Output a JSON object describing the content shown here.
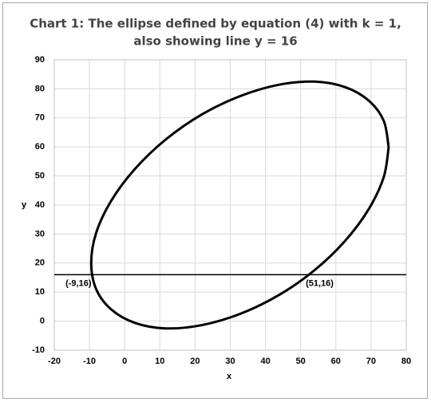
{
  "chart_data": {
    "type": "line",
    "title": [
      "Chart 1: The ellipse defined by equation (4) with k = 1,",
      "also showing line y = 16"
    ],
    "x_label": "x",
    "y_label": "y",
    "xlim": [
      -20,
      80
    ],
    "xticks": [
      -20,
      -10,
      0,
      10,
      20,
      30,
      40,
      50,
      60,
      70,
      80
    ],
    "ylim": [
      -10,
      90
    ],
    "yticks": [
      -10,
      0,
      10,
      20,
      30,
      40,
      50,
      60,
      70,
      80,
      90
    ],
    "grid": true,
    "series": [
      {
        "color": "#000000",
        "smooth": true,
        "x": [
          75.0,
          73.6,
          69.3,
          62.6,
          53.9,
          43.7,
          32.8,
          21.8,
          11.6,
          2.9,
          -3.8,
          -8.1,
          -9.5,
          -8.1,
          -3.8,
          2.9,
          11.6,
          21.8,
          32.8,
          43.7,
          53.9,
          62.6,
          69.3,
          73.6,
          75.0
        ],
        "values": [
          59.9,
          69.0,
          76.0,
          80.6,
          82.5,
          81.4,
          77.5,
          71.1,
          62.5,
          52.4,
          41.5,
          30.4,
          20.1,
          11.0,
          4.0,
          -0.6,
          -2.5,
          -1.4,
          2.5,
          8.9,
          17.5,
          27.6,
          38.5,
          49.6,
          59.9
        ]
      },
      {
        "color": "#000000",
        "smooth": false,
        "x": [
          -20,
          80
        ],
        "values": [
          16,
          16
        ]
      }
    ],
    "annotations": [
      {
        "text": "(-9,16)",
        "x": -9,
        "y": 16,
        "side": "left"
      },
      {
        "text": "(51,16)",
        "x": 51,
        "y": 16,
        "side": "right"
      }
    ]
  }
}
